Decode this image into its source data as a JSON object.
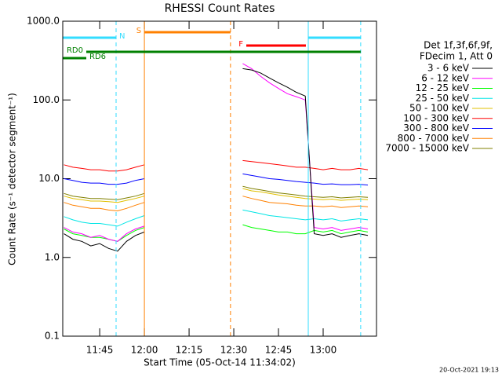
{
  "chart_data": {
    "type": "line",
    "title": "RHESSI Count Rates",
    "xlabel": "Start Time (05-Oct-14 11:34:02)",
    "ylabel": "Count Rate (s⁻¹ detector segment⁻¹)",
    "footer": "20-Oct-2021 19:13",
    "legend_title": [
      "Det 1f,3f,6f,9f,",
      "FDecim 1, Att 0"
    ],
    "log_y": true,
    "xlim": [
      692.6,
      797.9
    ],
    "xticks": [
      {
        "value": 705,
        "label": "11:45"
      },
      {
        "value": 720,
        "label": "12:00"
      },
      {
        "value": 735,
        "label": "12:15"
      },
      {
        "value": 750,
        "label": "12:30"
      },
      {
        "value": 765,
        "label": "12:45"
      },
      {
        "value": 780,
        "label": "13:00"
      }
    ],
    "ylim": [
      0.1,
      1000
    ],
    "yticks": [
      0.1,
      {
        "value": 1,
        "label": "1.0"
      },
      {
        "value": 10,
        "label": "10.0"
      },
      {
        "value": 100,
        "label": "100.0"
      },
      {
        "value": 1000,
        "label": "1000.0"
      }
    ],
    "x": [
      693,
      696,
      699,
      702,
      705,
      708,
      711,
      714,
      717,
      720,
      735,
      753,
      756,
      759,
      762,
      765,
      768,
      771,
      774,
      777,
      780,
      783,
      786,
      789,
      792,
      795
    ],
    "series": [
      {
        "name": "3 - 6 keV",
        "color": "#000000",
        "values": [
          2.0,
          1.7,
          1.6,
          1.4,
          1.5,
          1.3,
          1.2,
          1.6,
          1.9,
          2.1,
          null,
          250,
          240,
          220,
          190,
          165,
          145,
          125,
          112,
          2.0,
          1.9,
          2.0,
          1.8,
          1.9,
          2.0,
          1.9
        ]
      },
      {
        "name": "6 - 12 keV",
        "color": "#ff00ff",
        "values": [
          2.4,
          2.1,
          2.0,
          1.8,
          1.9,
          1.7,
          1.6,
          2.0,
          2.3,
          2.5,
          null,
          290,
          250,
          200,
          165,
          140,
          120,
          110,
          100,
          2.4,
          2.3,
          2.4,
          2.2,
          2.3,
          2.4,
          2.3
        ]
      },
      {
        "name": "12 - 25 keV",
        "color": "#00ff00",
        "values": [
          2.3,
          2.0,
          1.9,
          1.8,
          1.8,
          1.7,
          1.6,
          1.9,
          2.2,
          2.4,
          null,
          2.6,
          2.4,
          2.3,
          2.2,
          2.1,
          2.1,
          2.0,
          2.0,
          2.2,
          2.1,
          2.2,
          2.0,
          2.1,
          2.2,
          2.1
        ]
      },
      {
        "name": "25 - 50 keV",
        "color": "#00e5e5",
        "values": [
          3.3,
          3.0,
          2.8,
          2.7,
          2.7,
          2.6,
          2.5,
          2.8,
          3.1,
          3.4,
          null,
          4.0,
          3.8,
          3.6,
          3.4,
          3.3,
          3.2,
          3.1,
          3.0,
          3.1,
          3.0,
          3.1,
          2.9,
          3.0,
          3.1,
          3.0
        ]
      },
      {
        "name": "50 - 100 keV",
        "color": "#e0c000",
        "values": [
          6.0,
          5.6,
          5.4,
          5.2,
          5.2,
          5.1,
          5.0,
          5.3,
          5.6,
          6.0,
          null,
          7.5,
          7.0,
          6.8,
          6.5,
          6.2,
          6.0,
          5.8,
          5.6,
          5.5,
          5.4,
          5.5,
          5.3,
          5.4,
          5.5,
          5.4
        ]
      },
      {
        "name": "100 - 300 keV",
        "color": "#ff0000",
        "values": [
          15,
          14,
          13.5,
          13,
          13,
          12.5,
          12.5,
          13,
          14,
          15,
          null,
          17,
          16.5,
          16,
          15.5,
          15,
          14.5,
          14,
          14,
          13.5,
          13,
          13.5,
          13,
          13,
          13.5,
          13
        ]
      },
      {
        "name": "300 - 800 keV",
        "color": "#0000ff",
        "values": [
          10,
          9.5,
          9,
          8.8,
          8.8,
          8.5,
          8.5,
          8.8,
          9.5,
          10,
          null,
          11.5,
          11,
          10.5,
          10,
          9.8,
          9.5,
          9.2,
          9,
          8.8,
          8.5,
          8.6,
          8.4,
          8.4,
          8.5,
          8.3
        ]
      },
      {
        "name": "800 - 7000 keV",
        "color": "#ff8000",
        "values": [
          5.0,
          4.6,
          4.4,
          4.2,
          4.2,
          4.0,
          3.9,
          4.2,
          4.6,
          5.0,
          null,
          6.0,
          5.6,
          5.3,
          5.0,
          4.9,
          4.8,
          4.6,
          4.5,
          4.5,
          4.4,
          4.5,
          4.3,
          4.4,
          4.5,
          4.4
        ]
      },
      {
        "name": "7000 - 15000 keV",
        "color": "#808000",
        "values": [
          6.5,
          6.0,
          5.8,
          5.6,
          5.6,
          5.5,
          5.4,
          5.7,
          6.0,
          6.5,
          null,
          8.0,
          7.5,
          7.2,
          6.9,
          6.6,
          6.4,
          6.2,
          6.0,
          5.9,
          5.8,
          5.9,
          5.7,
          5.8,
          5.9,
          5.8
        ]
      }
    ],
    "flags": [
      {
        "label": "N",
        "color": "#33ddff",
        "boundaries": true,
        "intervals": [
          [
            692.6,
            710.5
          ],
          [
            775.0,
            792.6
          ]
        ]
      },
      {
        "label": "S",
        "color": "#ff8000",
        "boundaries": true,
        "intervals": [
          [
            720.0,
            748.9
          ]
        ]
      },
      {
        "label": "F",
        "color": "#ff0000",
        "boundaries": false,
        "intervals": [
          [
            754.2,
            774.2
          ]
        ]
      },
      {
        "label": "RD0",
        "color": "#008000",
        "boundaries": false,
        "intervals": [
          [
            700.5,
            792.6
          ]
        ]
      },
      {
        "label": "RD6",
        "color": "#008000",
        "boundaries": false,
        "intervals": [
          [
            692.6,
            700.5
          ]
        ]
      }
    ]
  }
}
